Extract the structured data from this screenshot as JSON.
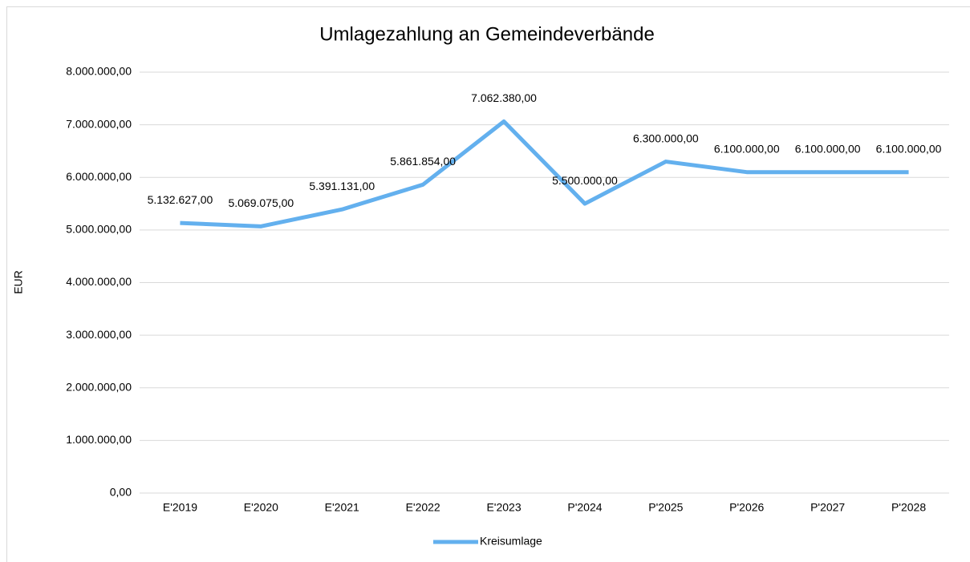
{
  "chart_data": {
    "type": "line",
    "title": "Umlagezahlung an Gemeindeverbände",
    "y_label": "EUR",
    "categories": [
      "E'2019",
      "E'2020",
      "E'2021",
      "E'2022",
      "E'2023",
      "P'2024",
      "P'2025",
      "P'2026",
      "P'2027",
      "P'2028"
    ],
    "series": [
      {
        "name": "Kreisumlage",
        "color": "#63b0ee",
        "values": [
          5132627,
          5069075,
          5391131,
          5861854,
          7062380,
          5500000,
          6300000,
          6100000,
          6100000,
          6100000
        ],
        "value_labels": [
          "5.132.627,00",
          "5.069.075,00",
          "5.391.131,00",
          "5.861.854,00",
          "7.062.380,00",
          "5.500.000,00",
          "6.300.000,00",
          "6.100.000,00",
          "6.100.000,00",
          "6.100.000,00"
        ]
      }
    ],
    "ylim": [
      0,
      8000000
    ],
    "yticks": [
      {
        "value": 0,
        "label": "0,00"
      },
      {
        "value": 1000000,
        "label": "1.000.000,00"
      },
      {
        "value": 2000000,
        "label": "2.000.000,00"
      },
      {
        "value": 3000000,
        "label": "3.000.000,00"
      },
      {
        "value": 4000000,
        "label": "4.000.000,00"
      },
      {
        "value": 5000000,
        "label": "5.000.000,00"
      },
      {
        "value": 6000000,
        "label": "6.000.000,00"
      },
      {
        "value": 7000000,
        "label": "7.000.000,00"
      },
      {
        "value": 8000000,
        "label": "8.000.000,00"
      }
    ],
    "grid": true,
    "legend": "bottom"
  }
}
